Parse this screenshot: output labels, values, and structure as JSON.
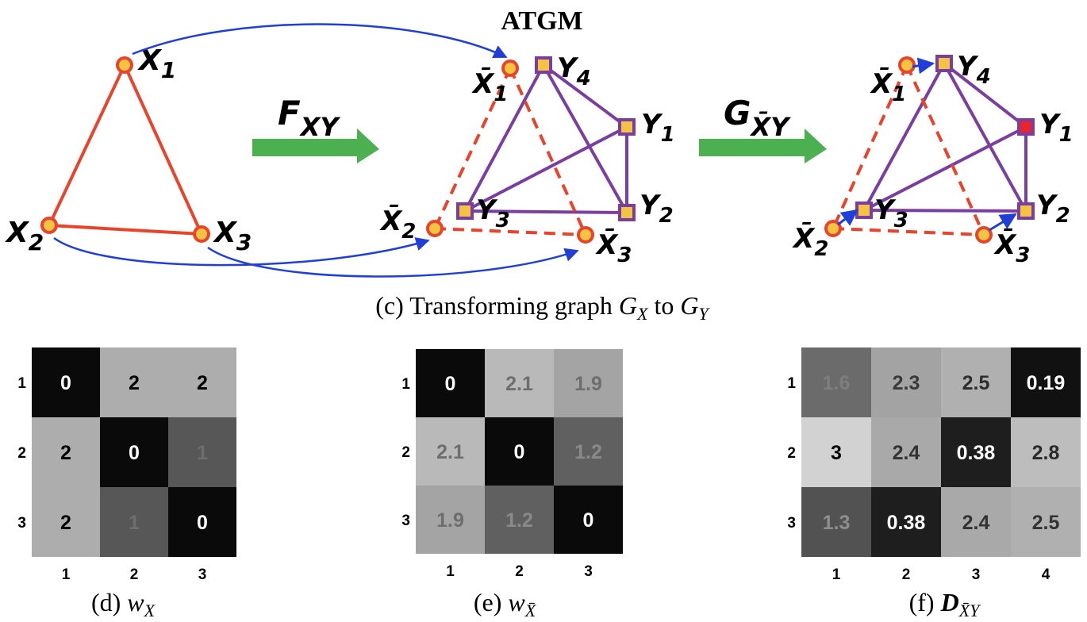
{
  "title": "ATGM",
  "arrows": {
    "f": {
      "main": "F",
      "sub": "XY"
    },
    "g": {
      "main": "G",
      "sub": "X̄Y"
    }
  },
  "graph_x": {
    "nodes": [
      {
        "id": "x1",
        "main": "X",
        "sub": "1"
      },
      {
        "id": "x2",
        "main": "X",
        "sub": "2"
      },
      {
        "id": "x3",
        "main": "X",
        "sub": "3"
      }
    ]
  },
  "graph_mid": {
    "xbar": [
      {
        "id": "xb1",
        "main": "X̄",
        "sub": "1"
      },
      {
        "id": "xb2",
        "main": "X̄",
        "sub": "2"
      },
      {
        "id": "xb3",
        "main": "X̄",
        "sub": "3"
      }
    ],
    "y": [
      {
        "id": "y1",
        "main": "Y",
        "sub": "1"
      },
      {
        "id": "y2",
        "main": "Y",
        "sub": "2"
      },
      {
        "id": "y3",
        "main": "Y",
        "sub": "3"
      },
      {
        "id": "y4",
        "main": "Y",
        "sub": "4"
      }
    ]
  },
  "captions": {
    "c": {
      "prefix": "(c) Transforming graph ",
      "a_main": "G",
      "a_sub": "X",
      "mid": " to ",
      "b_main": "G",
      "b_sub": "Y"
    },
    "d": {
      "prefix": "(d) ",
      "main": "w",
      "sub": "X"
    },
    "e": {
      "prefix": "(e) ",
      "main": "w",
      "sub": "X̄"
    },
    "f": {
      "prefix": "(f) ",
      "main": "D",
      "sub": "X̄Y"
    }
  },
  "matrices": {
    "d": {
      "row_labels": [
        "1",
        "2",
        "3"
      ],
      "col_labels": [
        "1",
        "2",
        "3"
      ],
      "cells": [
        [
          {
            "text": "0",
            "bg": "#0a0a0a",
            "fg": "#ffffff"
          },
          {
            "text": "2",
            "bg": "#adadad",
            "fg": "#000000"
          },
          {
            "text": "2",
            "bg": "#adadad",
            "fg": "#000000"
          }
        ],
        [
          {
            "text": "2",
            "bg": "#adadad",
            "fg": "#000000"
          },
          {
            "text": "0",
            "bg": "#0a0a0a",
            "fg": "#ffffff"
          },
          {
            "text": "1",
            "bg": "#575757",
            "fg": "#6e6e6e"
          }
        ],
        [
          {
            "text": "2",
            "bg": "#adadad",
            "fg": "#000000"
          },
          {
            "text": "1",
            "bg": "#575757",
            "fg": "#6e6e6e"
          },
          {
            "text": "0",
            "bg": "#0a0a0a",
            "fg": "#ffffff"
          }
        ]
      ]
    },
    "e": {
      "row_labels": [
        "1",
        "2",
        "3"
      ],
      "col_labels": [
        "1",
        "2",
        "3"
      ],
      "cells": [
        [
          {
            "text": "0",
            "bg": "#0a0a0a",
            "fg": "#ffffff"
          },
          {
            "text": "2.1",
            "bg": "#b9b9b9",
            "fg": "#6e6e6e"
          },
          {
            "text": "1.9",
            "bg": "#a4a4a4",
            "fg": "#6e6e6e"
          }
        ],
        [
          {
            "text": "2.1",
            "bg": "#b9b9b9",
            "fg": "#6e6e6e"
          },
          {
            "text": "0",
            "bg": "#0a0a0a",
            "fg": "#ffffff"
          },
          {
            "text": "1.2",
            "bg": "#606060",
            "fg": "#8a8a8a"
          }
        ],
        [
          {
            "text": "1.9",
            "bg": "#a4a4a4",
            "fg": "#6e6e6e"
          },
          {
            "text": "1.2",
            "bg": "#606060",
            "fg": "#8a8a8a"
          },
          {
            "text": "0",
            "bg": "#0a0a0a",
            "fg": "#ffffff"
          }
        ]
      ]
    },
    "f": {
      "row_labels": [
        "1",
        "2",
        "3"
      ],
      "col_labels": [
        "1",
        "2",
        "3",
        "4"
      ],
      "cells": [
        [
          {
            "text": "1.6",
            "bg": "#6b6b6b",
            "fg": "#7e7e7e"
          },
          {
            "text": "2.3",
            "bg": "#a3a3a3",
            "fg": "#3a3a3a"
          },
          {
            "text": "2.5",
            "bg": "#b0b0b0",
            "fg": "#2e2e2e"
          },
          {
            "text": "0.19",
            "bg": "#111111",
            "fg": "#ffffff"
          }
        ],
        [
          {
            "text": "3",
            "bg": "#d2d2d2",
            "fg": "#000000"
          },
          {
            "text": "2.4",
            "bg": "#a9a9a9",
            "fg": "#333333"
          },
          {
            "text": "0.38",
            "bg": "#1e1e1e",
            "fg": "#ffffff"
          },
          {
            "text": "2.8",
            "bg": "#bdbdbd",
            "fg": "#2a2a2a"
          }
        ],
        [
          {
            "text": "1.3",
            "bg": "#525252",
            "fg": "#8e8e8e"
          },
          {
            "text": "0.38",
            "bg": "#1e1e1e",
            "fg": "#ffffff"
          },
          {
            "text": "2.4",
            "bg": "#a9a9a9",
            "fg": "#333333"
          },
          {
            "text": "2.5",
            "bg": "#b0b0b0",
            "fg": "#333333"
          }
        ]
      ]
    }
  },
  "colors": {
    "red_edge": "#e8442c",
    "purple_edge": "#7a3ea0",
    "blue_arrow": "#1f3fd8",
    "green_arrow": "#4caf50",
    "node_fill": "#f5c342",
    "matched_fill": "#e8242c"
  }
}
